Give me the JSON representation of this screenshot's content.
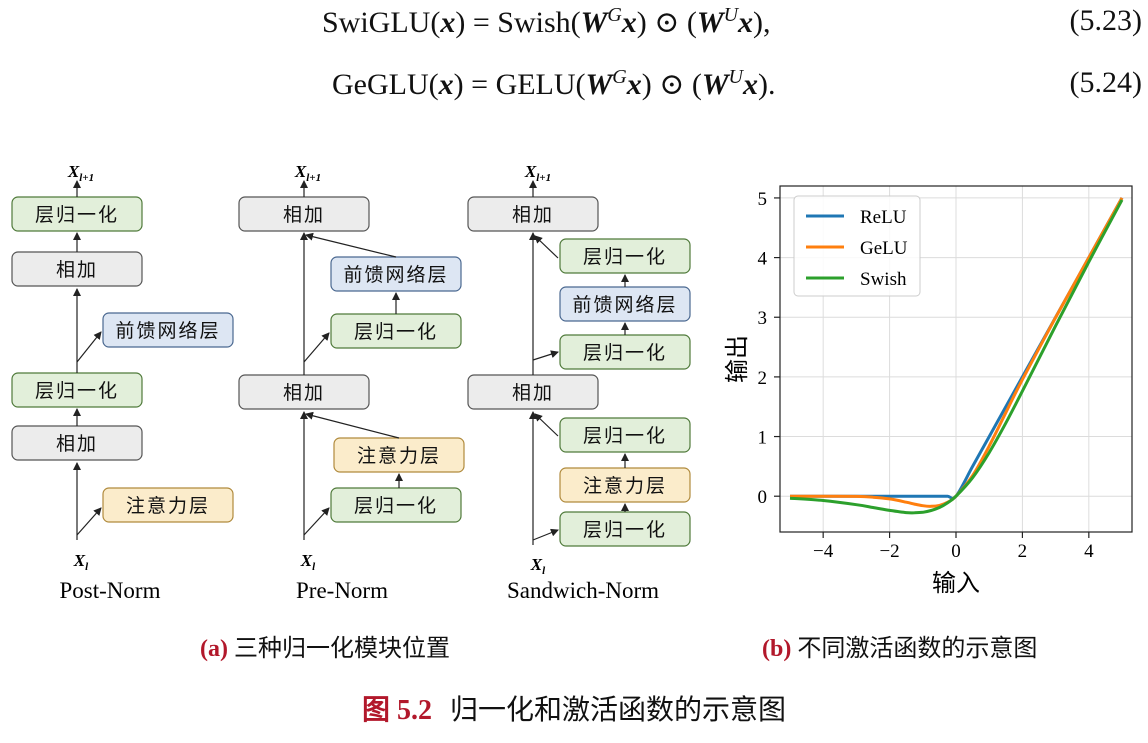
{
  "equations": [
    {
      "lhs_fn": "SwiGLU",
      "lhs_arg": "x",
      "rhs_fn": "Swish",
      "w1": "W",
      "w1_sup": "G",
      "w2": "W",
      "w2_sup": "U",
      "arg": "x",
      "op": "⊙",
      "end": ",",
      "number": "(5.23)"
    },
    {
      "lhs_fn": "GeGLU",
      "lhs_arg": "x",
      "rhs_fn": "GELU",
      "w1": "W",
      "w1_sup": "G",
      "w2": "W",
      "w2_sup": "U",
      "arg": "x",
      "op": "⊙",
      "end": ".",
      "number": "(5.24)"
    }
  ],
  "diagram": {
    "x_in": "X",
    "x_in_sub": "l",
    "x_out": "X",
    "x_out_sub": "l+1",
    "labels": {
      "norm": "层归一化",
      "add": "相加",
      "ffn": "前馈网络层",
      "attn": "注意力层"
    },
    "variants": [
      "Post-Norm",
      "Pre-Norm",
      "Sandwich-Norm"
    ],
    "colors": {
      "norm_fill": "#e2efda",
      "norm_stroke": "#4f7a3a",
      "add_fill": "#ececec",
      "add_stroke": "#555555",
      "ffn_fill": "#dde6f3",
      "ffn_stroke": "#4a6890",
      "attn_fill": "#fbeccb",
      "attn_stroke": "#b08a3c"
    }
  },
  "chart_data": {
    "type": "line",
    "xlabel": "输入",
    "ylabel": "输出",
    "xlim": [
      -5.3,
      5.3
    ],
    "ylim": [
      -0.6,
      5.2
    ],
    "xticks": [
      -4,
      -2,
      0,
      2,
      4
    ],
    "xtick_labels": [
      "−4",
      "−2",
      "0",
      "2",
      "4"
    ],
    "yticks": [
      0,
      1,
      2,
      3,
      4,
      5
    ],
    "grid": true,
    "legend_position": "top-left",
    "x": [
      -5,
      -4,
      -3,
      -2.5,
      -2,
      -1.5,
      -1.25,
      -1,
      -0.75,
      -0.5,
      -0.25,
      0,
      0.5,
      1,
      1.5,
      2,
      3,
      4,
      5
    ],
    "series": [
      {
        "name": "ReLU",
        "color": "#1f77b4",
        "values": [
          0,
          0,
          0,
          0,
          0,
          0,
          0,
          0,
          0,
          0,
          0,
          0,
          0.5,
          1,
          1.5,
          2,
          3,
          4,
          5
        ]
      },
      {
        "name": "GeLU",
        "color": "#ff7f0e",
        "values": [
          0,
          0,
          -0.004,
          -0.016,
          -0.045,
          -0.1,
          -0.132,
          -0.159,
          -0.17,
          -0.154,
          -0.1,
          0,
          0.346,
          0.841,
          1.4,
          1.955,
          2.996,
          4.0,
          5.0
        ]
      },
      {
        "name": "Swish",
        "color": "#2ca02c",
        "values": [
          -0.033,
          -0.072,
          -0.142,
          -0.189,
          -0.238,
          -0.274,
          -0.278,
          -0.269,
          -0.239,
          -0.189,
          -0.109,
          0,
          0.311,
          0.731,
          1.226,
          1.762,
          2.857,
          3.928,
          4.967
        ]
      }
    ]
  },
  "captions": {
    "a_tag": "(a)",
    "a_text": "三种归一化模块位置",
    "b_tag": "(b)",
    "b_text": "不同激活函数的示意图",
    "fig_tag": "图 5.2",
    "fig_text": "归一化和激活函数的示意图"
  }
}
